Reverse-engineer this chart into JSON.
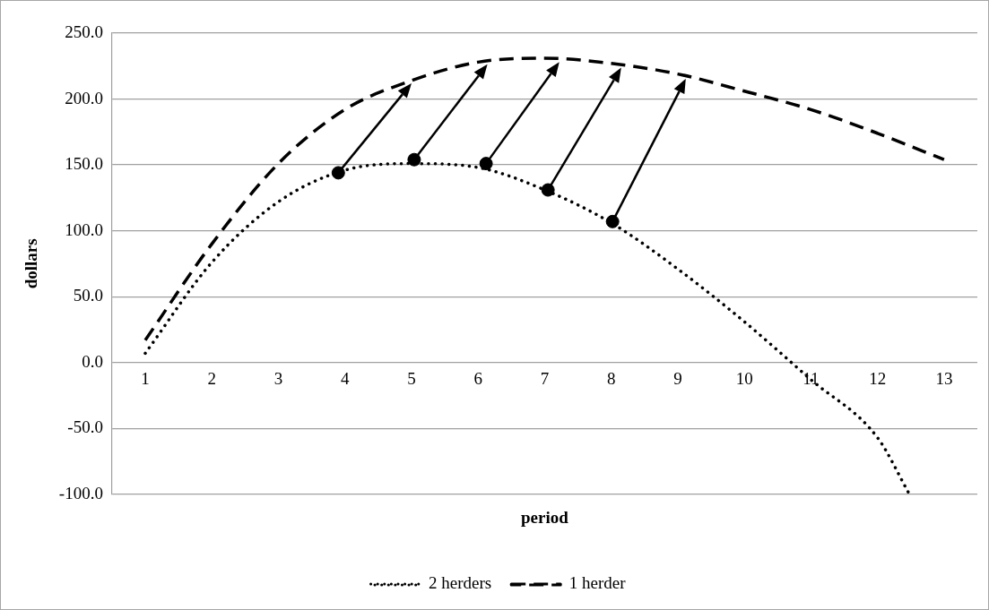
{
  "chart_data": {
    "type": "line",
    "xlabel": "period",
    "ylabel": "dollars",
    "xlim": [
      0.5,
      13.5
    ],
    "xticks": [
      1,
      2,
      3,
      4,
      5,
      6,
      7,
      8,
      9,
      10,
      11,
      12,
      13
    ],
    "ylim": [
      -100,
      250
    ],
    "yticks": [
      {
        "value": -100,
        "label": "-100.0"
      },
      {
        "value": -50,
        "label": "-50.0"
      },
      {
        "value": 0,
        "label": "0.0"
      },
      {
        "value": 50,
        "label": "50.0"
      },
      {
        "value": 100,
        "label": "100.0"
      },
      {
        "value": 150,
        "label": "150.0"
      },
      {
        "value": 200,
        "label": "200.0"
      },
      {
        "value": 250,
        "label": "250.0"
      }
    ],
    "grid": "y",
    "legend": "bottom",
    "series": [
      {
        "name": "2 herders",
        "color": "#000000",
        "line_style": "dotted",
        "marker": "none",
        "x": [
          1,
          2,
          3,
          4,
          5,
          6,
          7,
          8,
          9,
          10,
          11,
          12,
          12.48
        ],
        "values": [
          7,
          76,
          122,
          146,
          151,
          148,
          131,
          106,
          71,
          31,
          -13,
          -57,
          -100
        ]
      },
      {
        "name": "1 herder",
        "color": "#000000",
        "line_style": "dashed",
        "marker": "none",
        "x": [
          1,
          2,
          3,
          4,
          5,
          6,
          7,
          8,
          9,
          10,
          11,
          12,
          13
        ],
        "values": [
          17,
          90,
          151,
          192,
          214,
          228,
          231,
          227,
          219,
          206,
          192,
          174,
          154
        ]
      },
      {
        "type": "scatter",
        "color": "#000000",
        "marker": "circle",
        "x": [
          3.9,
          5.04,
          6.12,
          7.05,
          8.02
        ],
        "values": [
          144,
          154,
          151,
          131,
          107
        ]
      }
    ]
  }
}
